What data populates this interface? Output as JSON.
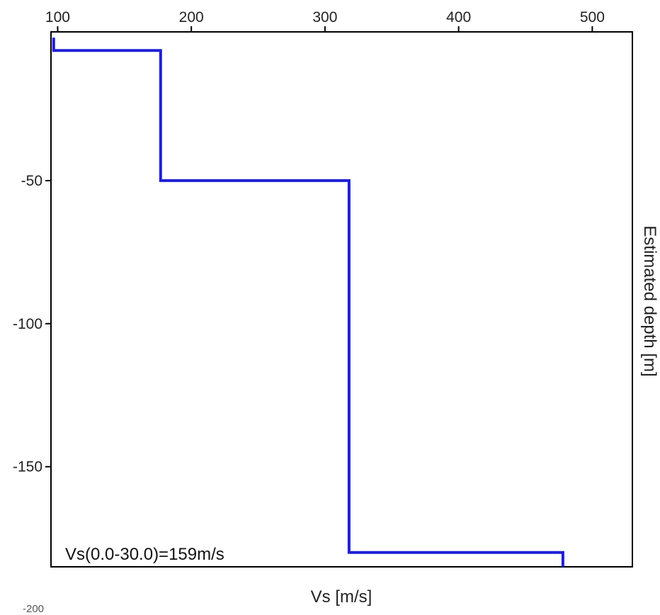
{
  "chart_data": {
    "type": "line",
    "chart_style": "step profile",
    "xlabel": "Vs [m/s]",
    "ylabel": "Estimated depth [m]",
    "x_axis_position": "top",
    "y_label_position": "right",
    "xlim": [
      95,
      530
    ],
    "ylim": [
      -185,
      2
    ],
    "x_ticks": [
      100,
      200,
      300,
      400,
      500
    ],
    "y_ticks": [
      -50,
      -100,
      -150
    ],
    "y_tick_labels": [
      "-50",
      "-100",
      "-150"
    ],
    "cut_off_label": "-200",
    "grid": false,
    "legend": "none",
    "annotation": "Vs(0.0-30.0)=159m/s",
    "series": [
      {
        "color": "#1f1fd6",
        "points": [
          {
            "vs": 97,
            "depth": 0
          },
          {
            "vs": 97,
            "depth": -4.5
          },
          {
            "vs": 177,
            "depth": -4.5
          },
          {
            "vs": 177,
            "depth": -50
          },
          {
            "vs": 318,
            "depth": -50
          },
          {
            "vs": 318,
            "depth": -180
          },
          {
            "vs": 478,
            "depth": -180
          },
          {
            "vs": 478,
            "depth": -185
          }
        ]
      }
    ]
  }
}
